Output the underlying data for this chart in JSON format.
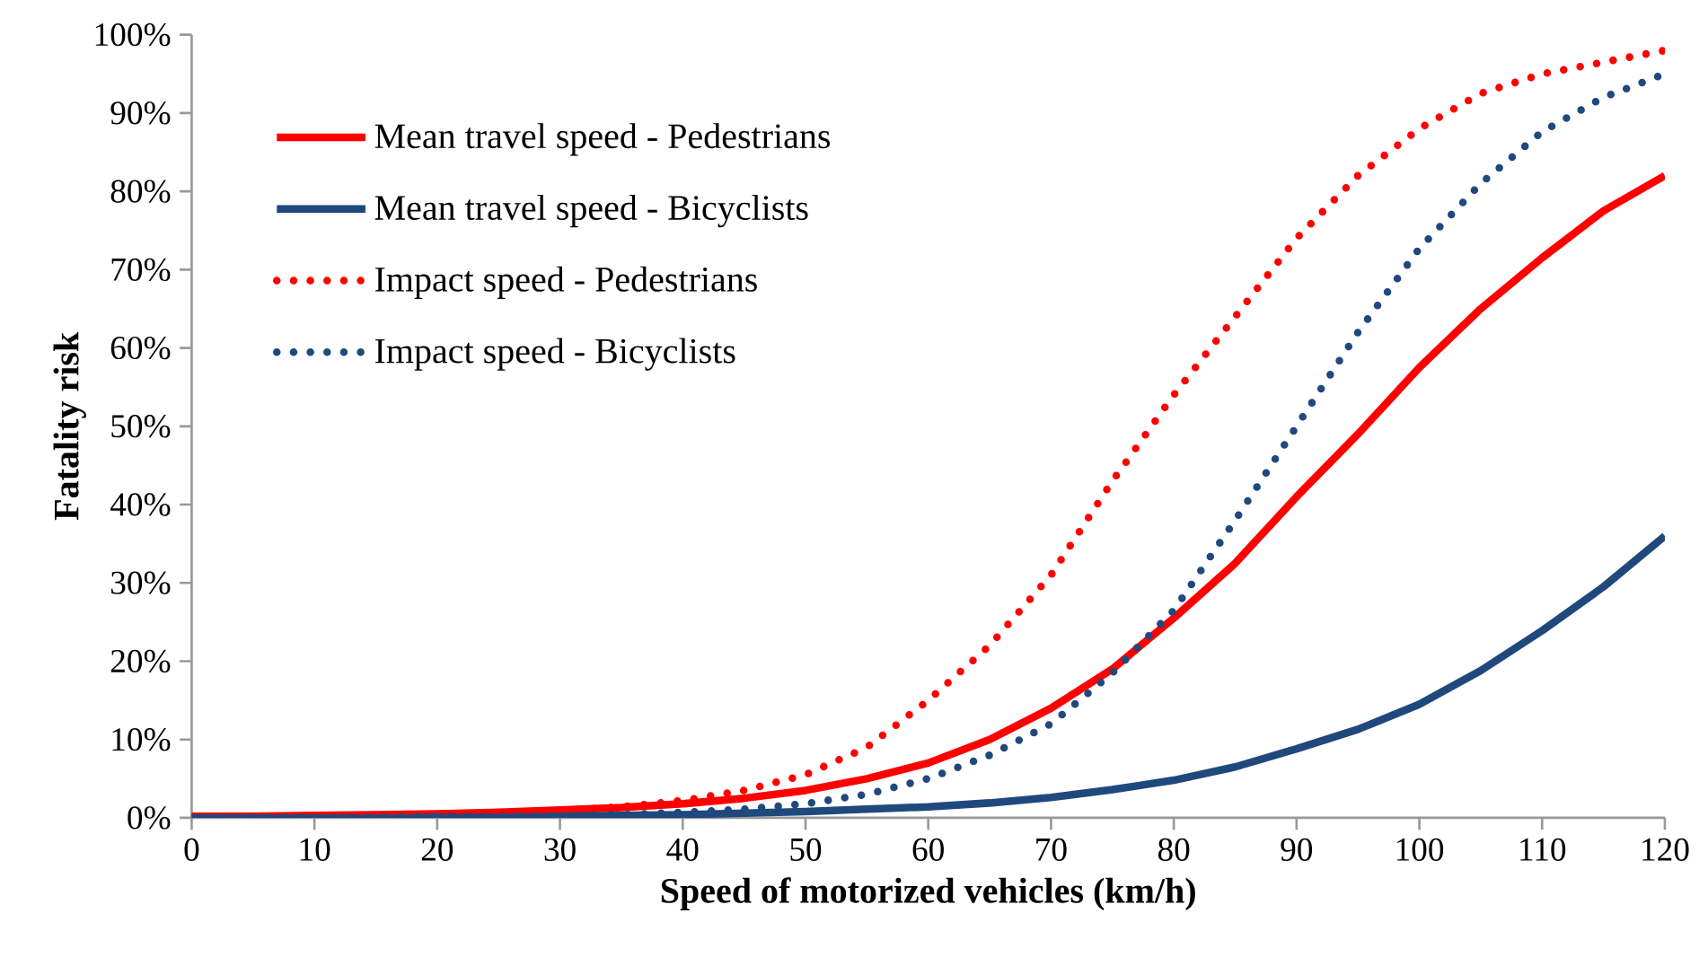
{
  "chart_data": {
    "type": "line",
    "xlabel": "Speed of motorized vehicles (km/h)",
    "ylabel": "Fatality risk",
    "x": [
      0,
      5,
      10,
      15,
      20,
      25,
      30,
      35,
      40,
      45,
      50,
      55,
      60,
      65,
      70,
      75,
      80,
      85,
      90,
      95,
      100,
      105,
      110,
      115,
      120
    ],
    "xlim": [
      0,
      120
    ],
    "xticks": [
      0,
      10,
      20,
      30,
      40,
      50,
      60,
      70,
      80,
      90,
      100,
      110,
      120
    ],
    "ylim": [
      0,
      100
    ],
    "yticks": [
      {
        "value": 0,
        "label": "0%"
      },
      {
        "value": 10,
        "label": "10%"
      },
      {
        "value": 20,
        "label": "20%"
      },
      {
        "value": 30,
        "label": "30%"
      },
      {
        "value": 40,
        "label": "40%"
      },
      {
        "value": 50,
        "label": "50%"
      },
      {
        "value": 60,
        "label": "60%"
      },
      {
        "value": 70,
        "label": "70%"
      },
      {
        "value": 80,
        "label": "80%"
      },
      {
        "value": 90,
        "label": "90%"
      },
      {
        "value": 100,
        "label": "100%"
      }
    ],
    "legend": "top left",
    "grid": false,
    "series": [
      {
        "name": "Mean travel speed - Pedestrians",
        "color": "#ff0000",
        "line_style": "solid",
        "values": [
          0.2,
          0.2,
          0.3,
          0.4,
          0.5,
          0.7,
          1,
          1.3,
          1.8,
          2.5,
          3.5,
          5,
          7,
          10,
          14,
          19,
          25.5,
          32.5,
          41,
          49,
          57.5,
          65,
          71.5,
          77.5,
          82
        ]
      },
      {
        "name": "Mean travel speed - Bicyclists",
        "color": "#1f497d",
        "line_style": "solid",
        "values": [
          0,
          0,
          0,
          0,
          0.1,
          0.1,
          0.2,
          0.3,
          0.4,
          0.6,
          0.8,
          1.1,
          1.4,
          1.9,
          2.6,
          3.6,
          4.8,
          6.5,
          8.8,
          11.3,
          14.5,
          18.8,
          23.9,
          29.5,
          36
        ]
      },
      {
        "name": "Impact speed - Pedestrians",
        "color": "#ff0000",
        "line_style": "dotted",
        "values": [
          0,
          0.1,
          0.1,
          0.2,
          0.4,
          0.6,
          0.9,
          1.4,
          2.2,
          3.5,
          5.5,
          9,
          15,
          22,
          31,
          43,
          54,
          64,
          74,
          82,
          88,
          92.5,
          95,
          96.5,
          98
        ]
      },
      {
        "name": "Impact speed - Bicyclists",
        "color": "#1f497d",
        "line_style": "dotted",
        "values": [
          0,
          0,
          0,
          0,
          0.1,
          0.1,
          0.2,
          0.4,
          0.7,
          1.1,
          1.8,
          3,
          5,
          8,
          12,
          18.5,
          26.5,
          38,
          50,
          62,
          72.7,
          81,
          87.6,
          92,
          95
        ]
      }
    ]
  }
}
